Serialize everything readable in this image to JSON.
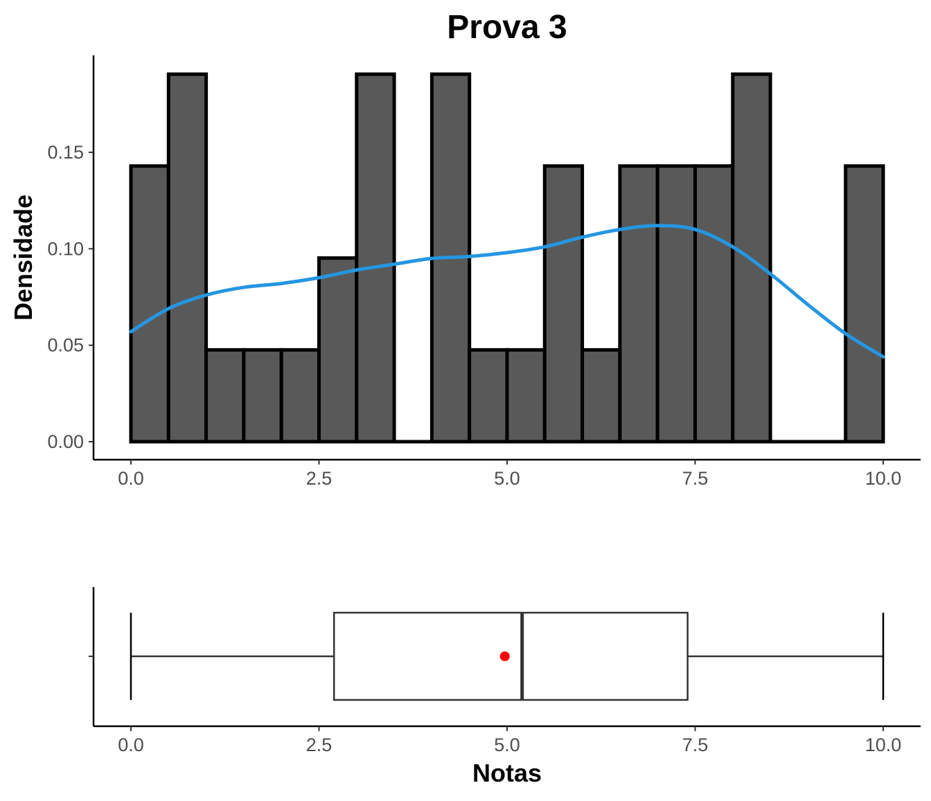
{
  "chart_data": [
    {
      "type": "histogram",
      "title": "Prova 3",
      "xlabel": "",
      "ylabel": "Densidade",
      "xlim": [
        0,
        10
      ],
      "ylim": [
        0,
        0.19
      ],
      "x_ticks": [
        "0.0",
        "2.5",
        "5.0",
        "7.5",
        "10.0"
      ],
      "x_tick_values": [
        0,
        2.5,
        5,
        7.5,
        10
      ],
      "y_ticks": [
        "0.00",
        "0.05",
        "0.10",
        "0.15"
      ],
      "y_tick_values": [
        0,
        0.05,
        0.1,
        0.15
      ],
      "bin_width": 0.5,
      "bins": [
        {
          "start": 0.0,
          "density": 0.1429
        },
        {
          "start": 0.5,
          "density": 0.1905
        },
        {
          "start": 1.0,
          "density": 0.0476
        },
        {
          "start": 1.5,
          "density": 0.0476
        },
        {
          "start": 2.0,
          "density": 0.0476
        },
        {
          "start": 2.5,
          "density": 0.0952
        },
        {
          "start": 3.0,
          "density": 0.1905
        },
        {
          "start": 3.5,
          "density": 0.0
        },
        {
          "start": 4.0,
          "density": 0.1905
        },
        {
          "start": 4.5,
          "density": 0.0476
        },
        {
          "start": 5.0,
          "density": 0.0476
        },
        {
          "start": 5.5,
          "density": 0.1429
        },
        {
          "start": 6.0,
          "density": 0.0476
        },
        {
          "start": 6.5,
          "density": 0.1429
        },
        {
          "start": 7.0,
          "density": 0.1429
        },
        {
          "start": 7.5,
          "density": 0.1429
        },
        {
          "start": 8.0,
          "density": 0.1905
        },
        {
          "start": 8.5,
          "density": 0.0
        },
        {
          "start": 9.0,
          "density": 0.0
        },
        {
          "start": 9.5,
          "density": 0.1429
        }
      ],
      "bar_fill": "#595959",
      "bar_stroke": "#000000",
      "density_curve": {
        "color": "#2596e1",
        "x": [
          0,
          0.5,
          1,
          1.5,
          2,
          2.5,
          3,
          3.5,
          4,
          4.5,
          5,
          5.5,
          6,
          6.5,
          7,
          7.5,
          8,
          8.5,
          9,
          9.5,
          10
        ],
        "y": [
          0.057,
          0.069,
          0.076,
          0.08,
          0.082,
          0.085,
          0.089,
          0.092,
          0.095,
          0.096,
          0.098,
          0.101,
          0.106,
          0.11,
          0.112,
          0.11,
          0.101,
          0.087,
          0.071,
          0.056,
          0.044
        ]
      }
    },
    {
      "type": "boxplot",
      "xlabel": "Notas",
      "xlim": [
        0,
        10
      ],
      "x_ticks": [
        "0.0",
        "2.5",
        "5.0",
        "7.5",
        "10.0"
      ],
      "x_tick_values": [
        0,
        2.5,
        5,
        7.5,
        10
      ],
      "min": 0.0,
      "q1": 2.7,
      "median": 5.2,
      "q3": 7.4,
      "max": 10.0,
      "mean": 4.97,
      "mean_color": "#ff0000",
      "box_stroke": "#333333"
    }
  ]
}
